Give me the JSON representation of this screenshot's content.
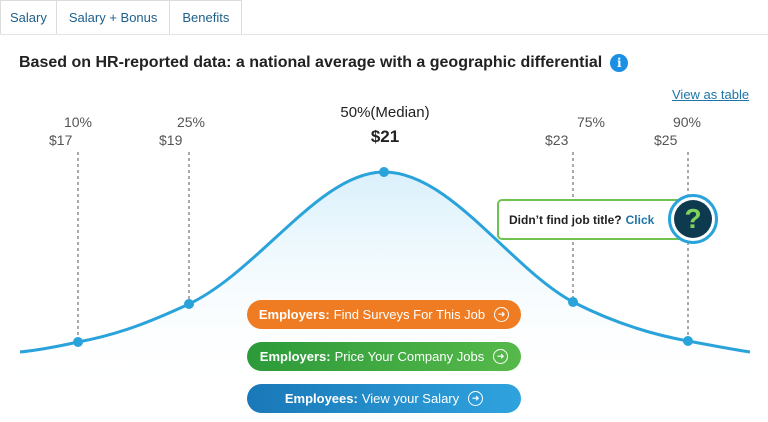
{
  "tabs": [
    {
      "label": "Salary"
    },
    {
      "label": "Salary + Bonus"
    },
    {
      "label": "Benefits"
    }
  ],
  "heading": "Based on HR-reported data: a national average with a geographic differential",
  "info_icon": "i",
  "view_as_table": "View as table",
  "percentiles": [
    {
      "label": "10%",
      "value": "$17"
    },
    {
      "label": "25%",
      "value": "$19"
    },
    {
      "label": "75%",
      "value": "$23"
    },
    {
      "label": "90%",
      "value": "$25"
    }
  ],
  "median": {
    "label": "50%(Median)",
    "value": "$21"
  },
  "buttons": {
    "employers_surveys": {
      "bold": "Employers:",
      "text": "Find Surveys For This Job"
    },
    "employers_price": {
      "bold": "Employers:",
      "text": "Price Your Company Jobs"
    },
    "employees_salary": {
      "bold": "Employees:",
      "text": "View your Salary"
    }
  },
  "job_title_prompt": {
    "text": "Didn’t find job title?",
    "link": "Click"
  },
  "help_icon": "?",
  "colors": {
    "curve": "#2aa3db",
    "orange": "#ef7c22",
    "green": "#3aa83f",
    "blue": "#1f8bcb"
  }
}
